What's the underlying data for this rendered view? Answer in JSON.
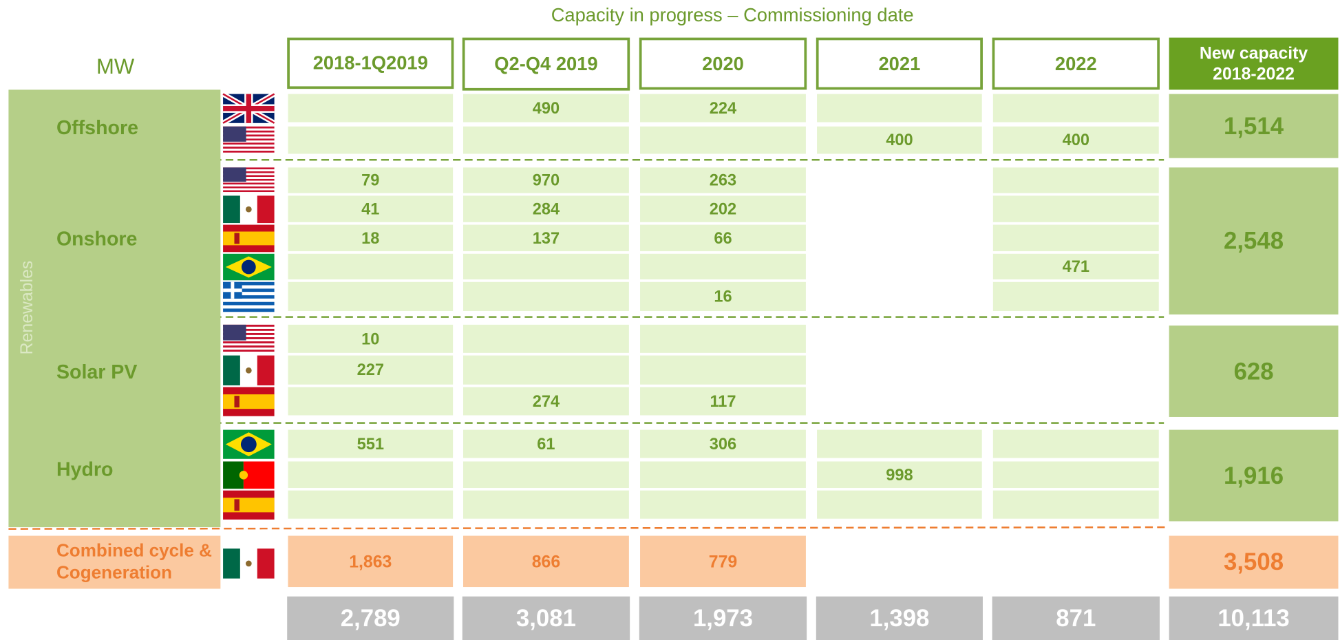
{
  "title": "Capacity in progress – Commissioning date",
  "unit": "MW",
  "columns": [
    "2018-1Q2019",
    "Q2-Q4 2019",
    "2020",
    "2021",
    "2022"
  ],
  "total_header": "New capacity 2018-2022",
  "segment_label": "Renewables",
  "groups": [
    {
      "name": "Offshore",
      "total": "1,514",
      "rows": [
        [
          null,
          "490",
          "224",
          null,
          null
        ],
        [
          null,
          null,
          null,
          "400",
          "400"
        ]
      ]
    },
    {
      "name": "Onshore",
      "total": "2,548",
      "rows": [
        [
          "79",
          "970",
          "263",
          null,
          null
        ],
        [
          "41",
          "284",
          "202",
          null,
          null
        ],
        [
          "18",
          "137",
          "66",
          null,
          null
        ],
        [
          null,
          null,
          null,
          null,
          "471"
        ],
        [
          null,
          null,
          "16",
          null,
          null
        ]
      ]
    },
    {
      "name": "Solar PV",
      "total": "628",
      "rows": [
        [
          "10",
          null,
          null,
          null,
          null
        ],
        [
          "227",
          null,
          null,
          null,
          null
        ],
        [
          null,
          "274",
          "117",
          null,
          null
        ]
      ]
    },
    {
      "name": "Hydro",
      "total": "1,916",
      "rows": [
        [
          "551",
          "61",
          "306",
          null,
          null
        ],
        [
          null,
          null,
          null,
          "998",
          null
        ],
        [
          null,
          null,
          null,
          null,
          null
        ]
      ]
    },
    {
      "name": "Combined cycle & Cogeneration",
      "total": "3,508",
      "rows": [
        [
          "1,863",
          "866",
          "779",
          null,
          null
        ]
      ]
    }
  ],
  "column_totals": [
    "2,789",
    "3,081",
    "1,973",
    "1,398",
    "871"
  ],
  "grand_total": "10,113"
}
